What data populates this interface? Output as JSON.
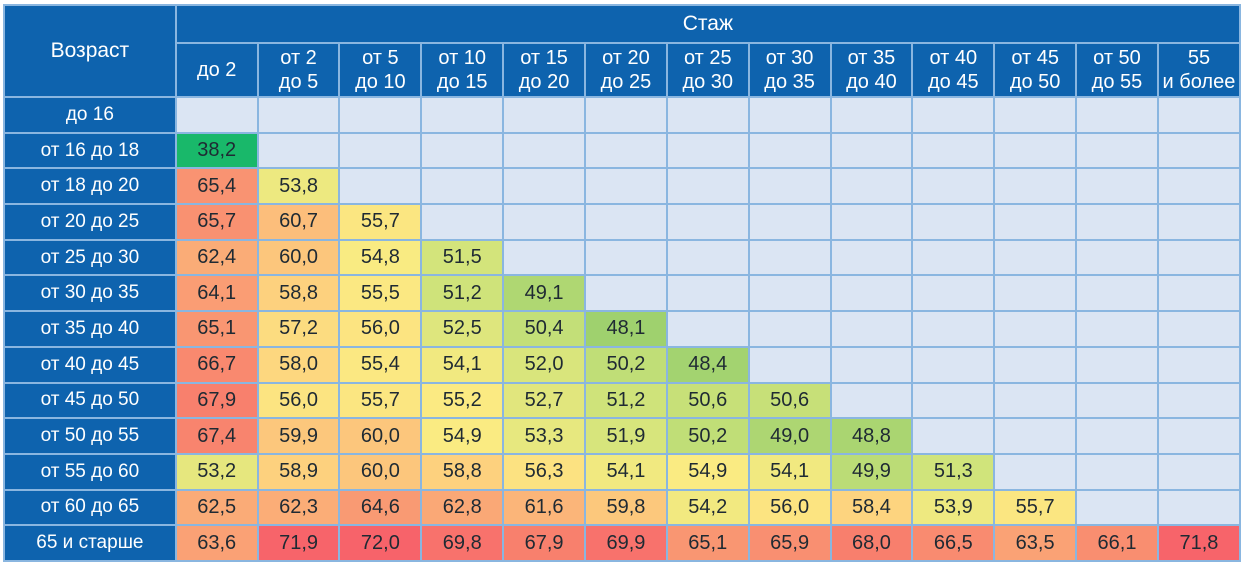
{
  "chart_data": {
    "type": "heatmap",
    "corner_label": "Возраст",
    "column_group_label": "Стаж",
    "columns": [
      [
        "до 2"
      ],
      [
        "от 2",
        "до 5"
      ],
      [
        "от 5",
        "до 10"
      ],
      [
        "от 10",
        "до 15"
      ],
      [
        "от 15",
        "до 20"
      ],
      [
        "от 20",
        "до 25"
      ],
      [
        "от 25",
        "до 30"
      ],
      [
        "от 30",
        "до 35"
      ],
      [
        "от 35",
        "до 40"
      ],
      [
        "от 40",
        "до 45"
      ],
      [
        "от 45",
        "до 50"
      ],
      [
        "от 50",
        "до 55"
      ],
      [
        "55",
        "и более"
      ]
    ],
    "rows": [
      "до 16",
      "от 16 до 18",
      "от 18 до 20",
      "от 20 до 25",
      "от 25 до 30",
      "от 30 до 35",
      "от 35 до 40",
      "от 40 до 45",
      "от 45 до 50",
      "от 50 до 55",
      "от 55 до 60",
      "от 60 до 65",
      "65 и старше"
    ],
    "values": [
      [],
      [
        "38,2"
      ],
      [
        "65,4",
        "53,8"
      ],
      [
        "65,7",
        "60,7",
        "55,7"
      ],
      [
        "62,4",
        "60,0",
        "54,8",
        "51,5"
      ],
      [
        "64,1",
        "58,8",
        "55,5",
        "51,2",
        "49,1"
      ],
      [
        "65,1",
        "57,2",
        "56,0",
        "52,5",
        "50,4",
        "48,1"
      ],
      [
        "66,7",
        "58,0",
        "55,4",
        "54,1",
        "52,0",
        "50,2",
        "48,4"
      ],
      [
        "67,9",
        "56,0",
        "55,7",
        "55,2",
        "52,7",
        "51,2",
        "50,6",
        "50,6"
      ],
      [
        "67,4",
        "59,9",
        "60,0",
        "54,9",
        "53,3",
        "51,9",
        "50,2",
        "49,0",
        "48,8"
      ],
      [
        "53,2",
        "58,9",
        "60,0",
        "58,8",
        "56,3",
        "54,1",
        "54,9",
        "54,1",
        "49,9",
        "51,3"
      ],
      [
        "62,5",
        "62,3",
        "64,6",
        "62,8",
        "61,6",
        "59,8",
        "54,2",
        "56,0",
        "58,4",
        "53,9",
        "55,7"
      ],
      [
        "63,6",
        "71,9",
        "72,0",
        "69,8",
        "67,9",
        "69,9",
        "65,1",
        "65,9",
        "68,0",
        "66,5",
        "63,5",
        "66,1",
        "71,8"
      ]
    ],
    "color_scale": {
      "stops": [
        {
          "value": 38.2,
          "color": "#19b86a"
        },
        {
          "value": 48.0,
          "color": "#9dd06e"
        },
        {
          "value": 51.0,
          "color": "#cde37a"
        },
        {
          "value": 55.0,
          "color": "#fbeb82"
        },
        {
          "value": 59.0,
          "color": "#fdd07e"
        },
        {
          "value": 63.0,
          "color": "#faa676"
        },
        {
          "value": 68.0,
          "color": "#f87f6d"
        },
        {
          "value": 72.0,
          "color": "#f7636a"
        }
      ],
      "empty_color": "#dbe5f3"
    },
    "colors": {
      "header_bg": "#0e63ae",
      "header_text": "#ffffff",
      "grid": "#8ab6e0",
      "value_text": "#1f2a33"
    }
  }
}
